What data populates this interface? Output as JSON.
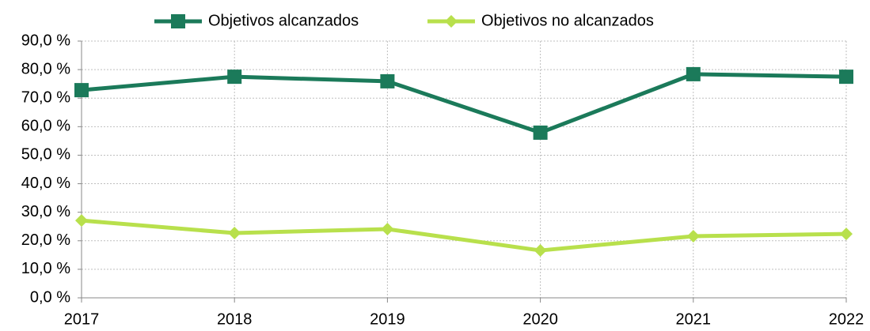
{
  "chart_data": {
    "type": "line",
    "categories": [
      "2017",
      "2018",
      "2019",
      "2020",
      "2021",
      "2022"
    ],
    "series": [
      {
        "name": "Objetivos alcanzados",
        "color": "#1b7a5a",
        "marker": "square",
        "values": [
          72.8,
          77.5,
          75.9,
          57.9,
          78.4,
          77.5
        ]
      },
      {
        "name": "Objetivos no alcanzados",
        "color": "#b8e04c",
        "marker": "diamond",
        "values": [
          27.1,
          22.7,
          24.1,
          16.6,
          21.6,
          22.4
        ]
      }
    ],
    "ylim": [
      0,
      90
    ],
    "yticks": [
      {
        "value": 0,
        "label": "0,0 %"
      },
      {
        "value": 10,
        "label": "10,0 %"
      },
      {
        "value": 20,
        "label": "20,0 %"
      },
      {
        "value": 30,
        "label": "30,0 %"
      },
      {
        "value": 40,
        "label": "40,0 %"
      },
      {
        "value": 50,
        "label": "50,0 %"
      },
      {
        "value": 60,
        "label": "60,0 %"
      },
      {
        "value": 70,
        "label": "70,0 %"
      },
      {
        "value": 80,
        "label": "80,0 %"
      },
      {
        "value": 90,
        "label": "90,0 %"
      }
    ],
    "grid": true,
    "legend": "top"
  }
}
